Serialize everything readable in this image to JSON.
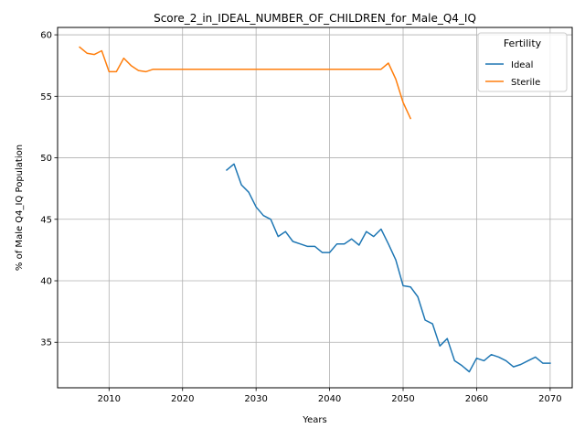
{
  "chart_data": {
    "type": "line",
    "title": "Score_2_in_IDEAL_NUMBER_OF_CHILDREN_for_Male_Q4_IQ",
    "xlabel": "Years",
    "ylabel": "% of Male Q4_IQ Population",
    "xlim": [
      2003,
      2073
    ],
    "ylim": [
      31.3,
      60.6
    ],
    "xticks": [
      2010,
      2020,
      2030,
      2040,
      2050,
      2060,
      2070
    ],
    "yticks": [
      35,
      40,
      45,
      50,
      55,
      60
    ],
    "grid": true,
    "legend": {
      "title": "Fertility",
      "placement": "top-right"
    },
    "series": [
      {
        "name": "Ideal",
        "color": "#1f77b4",
        "x": [
          2026,
          2027,
          2028,
          2029,
          2030,
          2031,
          2032,
          2033,
          2034,
          2035,
          2036,
          2037,
          2038,
          2039,
          2040,
          2041,
          2042,
          2043,
          2044,
          2045,
          2046,
          2047,
          2048,
          2049,
          2050,
          2051,
          2052,
          2053,
          2054,
          2055,
          2056,
          2057,
          2058,
          2059,
          2060,
          2061,
          2062,
          2063,
          2064,
          2065,
          2066,
          2067,
          2068,
          2069,
          2070
        ],
        "y": [
          49.0,
          49.5,
          47.8,
          47.2,
          46.0,
          45.3,
          45.0,
          43.6,
          44.0,
          43.2,
          43.0,
          42.8,
          42.8,
          42.3,
          42.3,
          43.0,
          43.0,
          43.4,
          42.9,
          44.0,
          43.6,
          44.2,
          43.0,
          41.7,
          39.6,
          39.5,
          38.7,
          36.8,
          36.5,
          34.7,
          35.3,
          33.5,
          33.1,
          32.6,
          33.7,
          33.5,
          34.0,
          33.8,
          33.5,
          33.0,
          33.2,
          33.5,
          33.8,
          33.3,
          33.3
        ]
      },
      {
        "name": "Sterile",
        "color": "#ff7f0e",
        "x": [
          2006,
          2007,
          2008,
          2009,
          2010,
          2011,
          2012,
          2013,
          2014,
          2015,
          2016,
          2017,
          2018,
          2019,
          2020,
          2021,
          2022,
          2023,
          2024,
          2025,
          2026,
          2027,
          2028,
          2029,
          2030,
          2031,
          2032,
          2033,
          2034,
          2035,
          2036,
          2037,
          2038,
          2039,
          2040,
          2041,
          2042,
          2043,
          2044,
          2045,
          2046,
          2047,
          2048,
          2049,
          2050,
          2051
        ],
        "y": [
          59.0,
          58.5,
          58.4,
          58.7,
          57.0,
          57.0,
          58.1,
          57.5,
          57.1,
          57.0,
          57.2,
          57.2,
          57.2,
          57.2,
          57.2,
          57.2,
          57.2,
          57.2,
          57.2,
          57.2,
          57.2,
          57.2,
          57.2,
          57.2,
          57.2,
          57.2,
          57.2,
          57.2,
          57.2,
          57.2,
          57.2,
          57.2,
          57.2,
          57.2,
          57.2,
          57.2,
          57.2,
          57.2,
          57.2,
          57.2,
          57.2,
          57.2,
          57.7,
          56.4,
          54.5,
          53.2
        ]
      }
    ]
  }
}
